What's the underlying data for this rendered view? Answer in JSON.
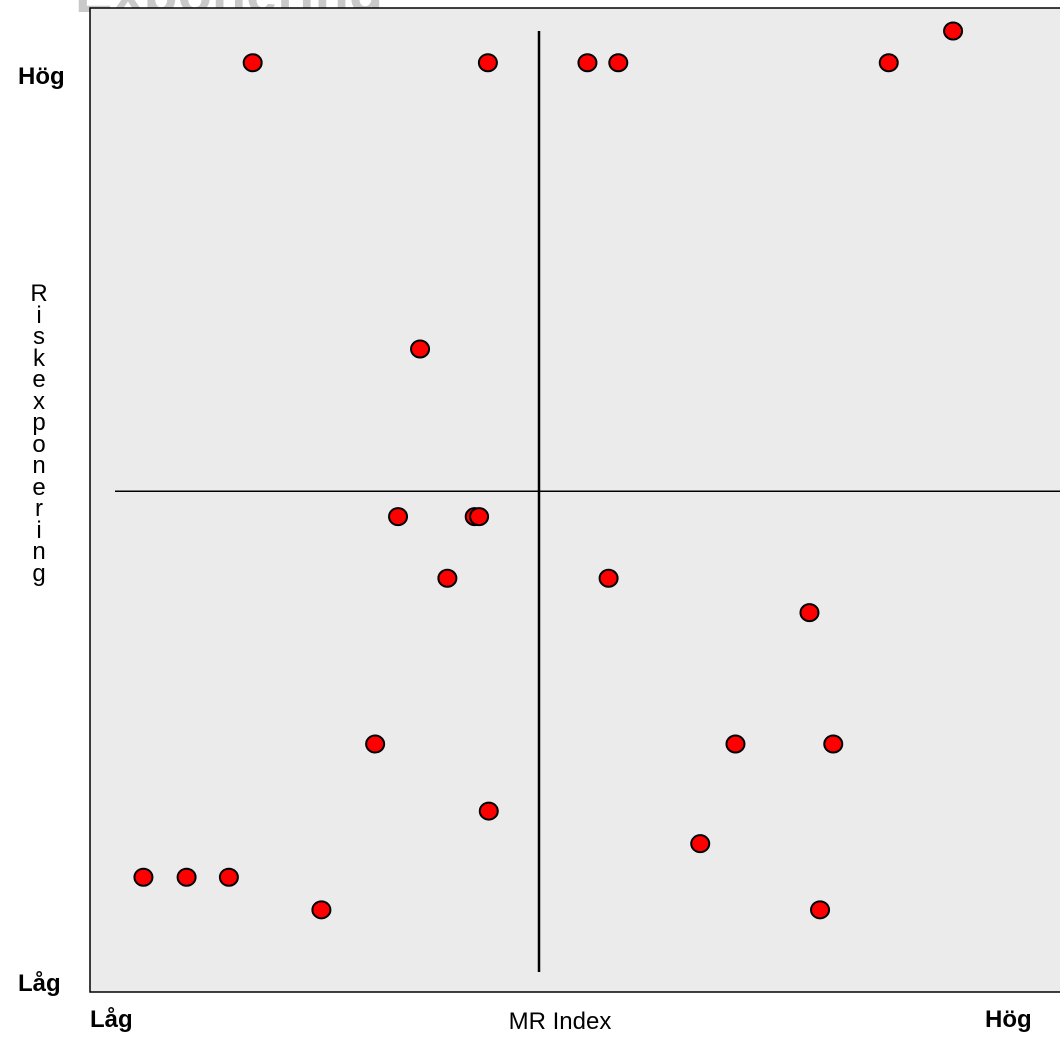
{
  "chart_data": {
    "type": "scatter",
    "title": "Exponering",
    "xlabel": "MR Index",
    "ylabel": "Riskexponering",
    "x_tick_labels": [
      "Låg",
      "Hög"
    ],
    "y_tick_labels": [
      "Låg",
      "Hög"
    ],
    "xlim": [
      0,
      100
    ],
    "ylim": [
      0,
      100
    ],
    "grid": false,
    "quadrant_divider": {
      "x": 47.9,
      "y": 49.2
    },
    "colors": {
      "background": "#ebebeb",
      "point_fill": "#ff0000",
      "point_stroke": "#000000",
      "axis": "#000000",
      "title": "#c9c9c9"
    },
    "points": [
      {
        "x": 15.4,
        "y": 96.5
      },
      {
        "x": 42.1,
        "y": 96.5
      },
      {
        "x": 53.4,
        "y": 96.5
      },
      {
        "x": 56.9,
        "y": 96.5
      },
      {
        "x": 87.6,
        "y": 96.5
      },
      {
        "x": 94.9,
        "y": 100.0
      },
      {
        "x": 34.4,
        "y": 64.9
      },
      {
        "x": 31.9,
        "y": 46.4
      },
      {
        "x": 40.6,
        "y": 46.4
      },
      {
        "x": 41.1,
        "y": 46.4
      },
      {
        "x": 37.5,
        "y": 39.6
      },
      {
        "x": 55.8,
        "y": 39.6
      },
      {
        "x": 78.6,
        "y": 35.8
      },
      {
        "x": 29.3,
        "y": 21.3
      },
      {
        "x": 70.2,
        "y": 21.3
      },
      {
        "x": 81.3,
        "y": 21.3
      },
      {
        "x": 42.2,
        "y": 13.9
      },
      {
        "x": 66.2,
        "y": 10.3
      },
      {
        "x": 3.0,
        "y": 6.6
      },
      {
        "x": 7.9,
        "y": 6.6
      },
      {
        "x": 12.7,
        "y": 6.6
      },
      {
        "x": 23.2,
        "y": 3.0
      },
      {
        "x": 79.8,
        "y": 3.0
      }
    ]
  }
}
